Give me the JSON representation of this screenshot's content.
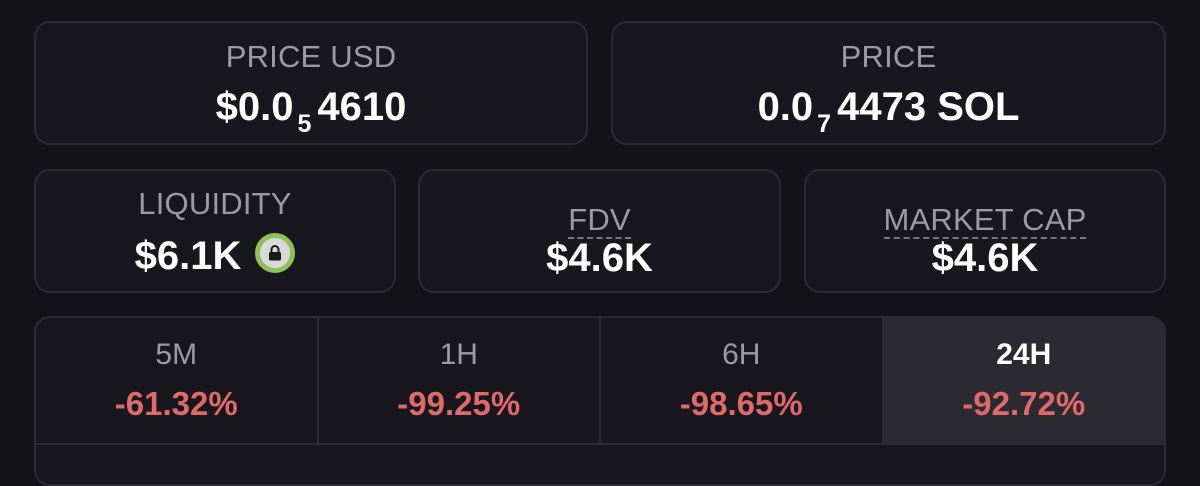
{
  "price_usd": {
    "label": "PRICE USD",
    "prefix": "$0.0",
    "zeros": "5",
    "digits": "4610"
  },
  "price_native": {
    "label": "PRICE",
    "prefix": "0.0",
    "zeros": "7",
    "digits": "4473",
    "unit": "SOL"
  },
  "liquidity": {
    "label": "LIQUIDITY",
    "value": "$6.1K",
    "icon": "lock-icon",
    "icon_ring_color": "#8fc15a"
  },
  "fdv": {
    "label": "FDV",
    "value": "$4.6K"
  },
  "market_cap": {
    "label": "MARKET CAP",
    "value": "$4.6K"
  },
  "changes": [
    {
      "period": "5M",
      "value": "-61.32%"
    },
    {
      "period": "1H",
      "value": "-99.25%"
    },
    {
      "period": "6H",
      "value": "-98.65%"
    },
    {
      "period": "24H",
      "value": "-92.72%"
    }
  ],
  "active_period": "24H",
  "colors": {
    "negative": "#e0696a",
    "background": "#141318",
    "card": "#18171d",
    "border": "#2c2b33"
  }
}
